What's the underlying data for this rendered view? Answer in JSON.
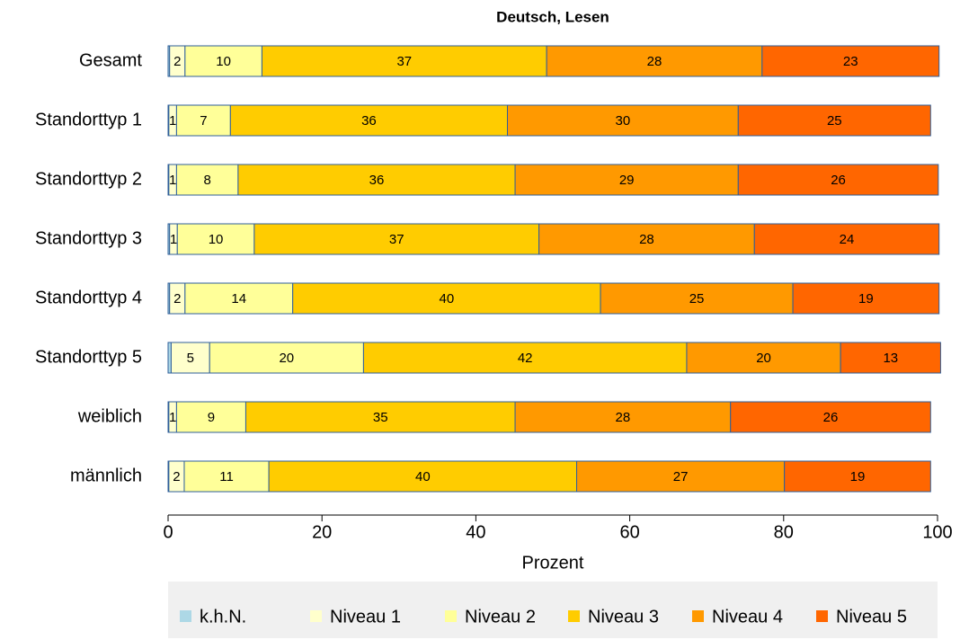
{
  "chart_data": {
    "type": "stacked-bar-horizontal",
    "title": "Deutsch, Lesen",
    "x_label": "Prozent",
    "categories": [
      "Gesamt",
      "Standorttyp 1",
      "Standorttyp 2",
      "Standorttyp 3",
      "Standorttyp 4",
      "Standorttyp 5",
      "weiblich",
      "männlich"
    ],
    "series": [
      {
        "name": "k.h.N.",
        "color": "#add8e6",
        "values": [
          0.2,
          0.1,
          0.1,
          0.2,
          0.2,
          0.4,
          0.1,
          0.1
        ]
      },
      {
        "name": "Niveau 1",
        "color": "#ffffcc",
        "values": [
          2,
          1,
          1,
          1,
          2,
          5,
          1,
          2
        ]
      },
      {
        "name": "Niveau 2",
        "color": "#ffff99",
        "values": [
          10,
          7,
          8,
          10,
          14,
          20,
          9,
          11
        ]
      },
      {
        "name": "Niveau 3",
        "color": "#ffcc00",
        "values": [
          37,
          36,
          36,
          37,
          40,
          42,
          35,
          40
        ]
      },
      {
        "name": "Niveau 4",
        "color": "#ff9900",
        "values": [
          28,
          30,
          29,
          28,
          25,
          20,
          28,
          27
        ]
      },
      {
        "name": "Niveau 5",
        "color": "#ff6600",
        "values": [
          23,
          25,
          26,
          24,
          19,
          13,
          26,
          19
        ]
      }
    ],
    "xlim": [
      0,
      100
    ],
    "xticks": [
      0,
      20,
      40,
      60,
      80,
      100
    ],
    "legend": "bottom"
  }
}
